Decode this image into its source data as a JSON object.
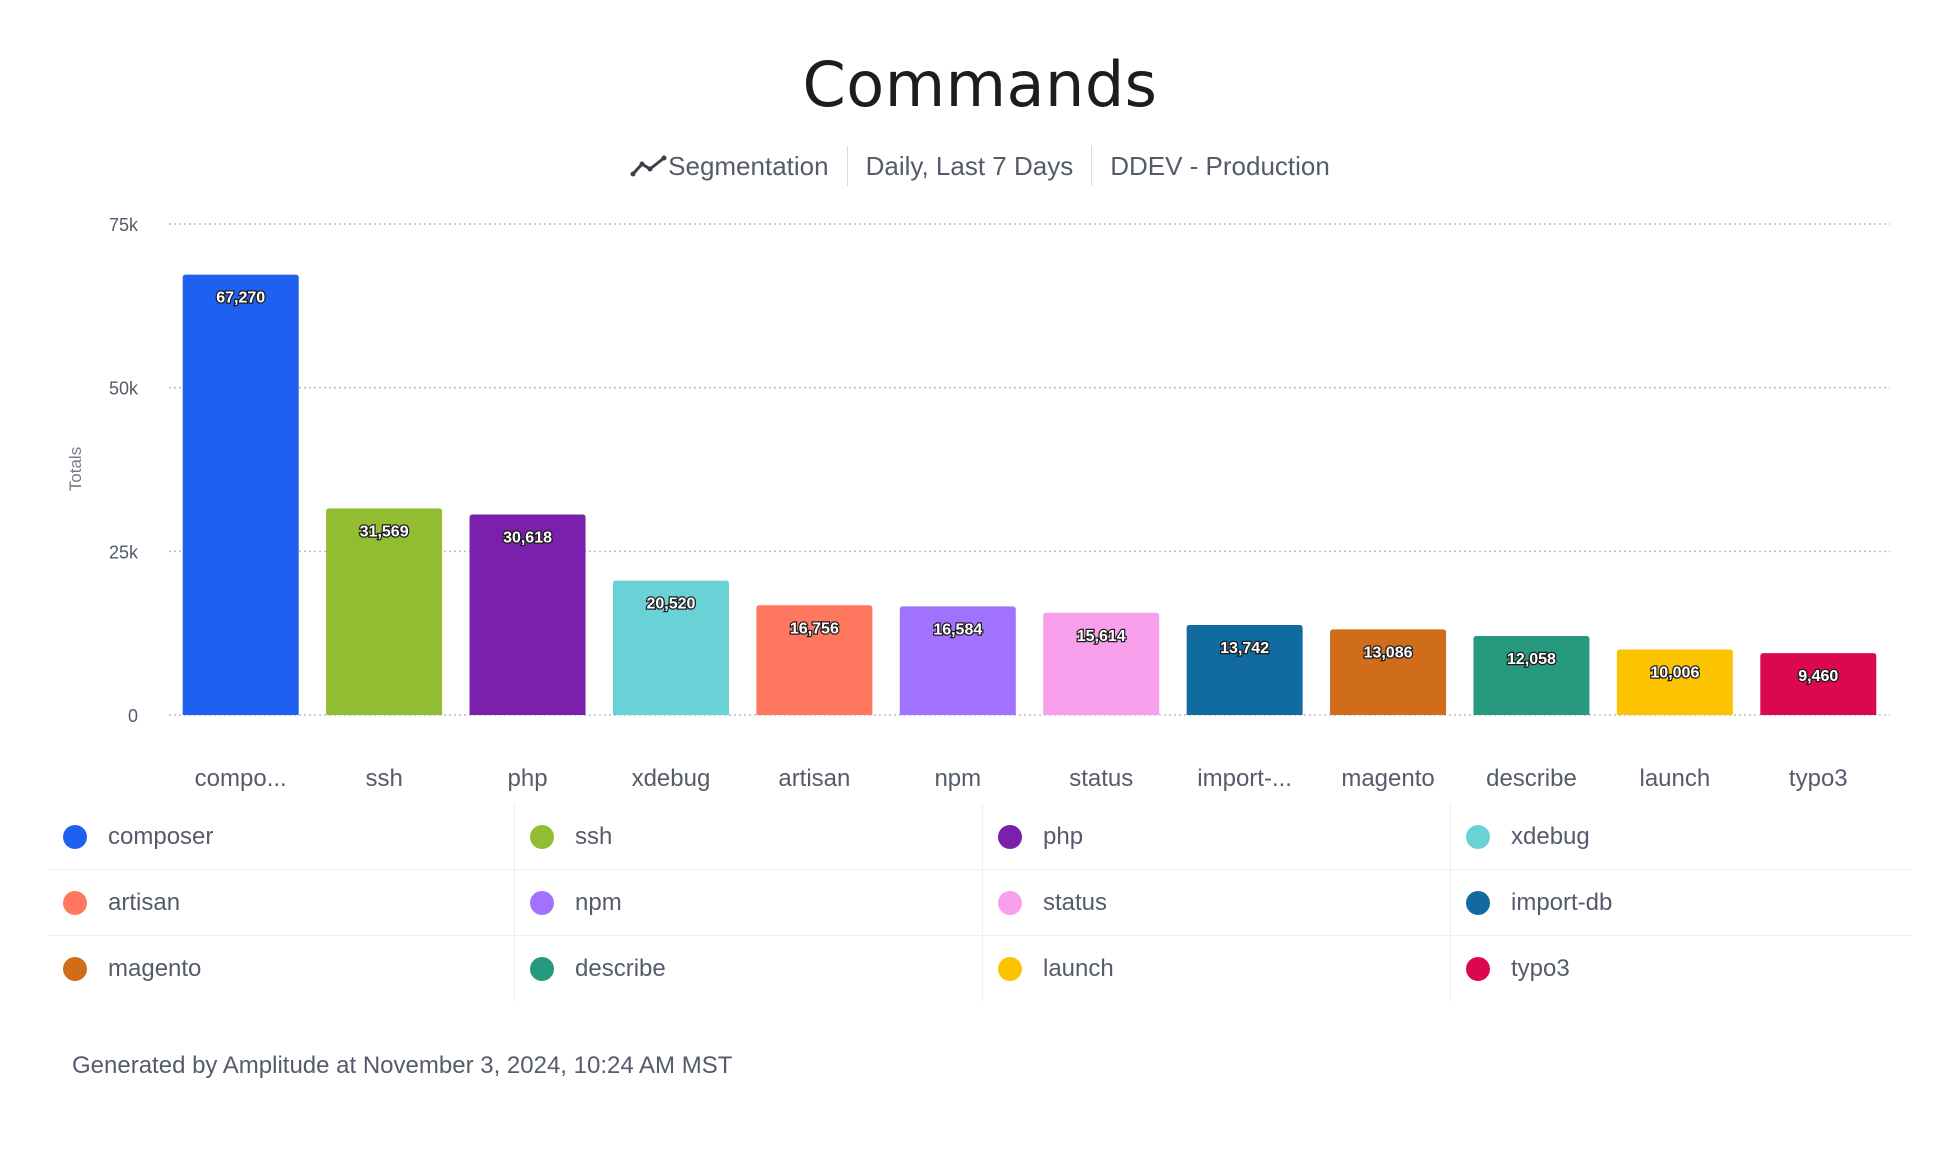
{
  "chart_data": {
    "type": "bar",
    "title": "Commands",
    "subtitle": {
      "mode": "Segmentation",
      "range": "Daily, Last 7 Days",
      "project": "DDEV - Production"
    },
    "ylabel": "Totals",
    "xlabel": "",
    "ylim": [
      0,
      75000
    ],
    "yticks": [
      {
        "value": 0,
        "label": "0"
      },
      {
        "value": 25000,
        "label": "25k"
      },
      {
        "value": 50000,
        "label": "50k"
      },
      {
        "value": 75000,
        "label": "75k"
      }
    ],
    "grid": true,
    "legend_placement": "bottom",
    "categories": [
      "composer",
      "ssh",
      "php",
      "xdebug",
      "artisan",
      "npm",
      "status",
      "import-db",
      "magento",
      "describe",
      "launch",
      "typo3"
    ],
    "tick_labels": [
      "compo...",
      "ssh",
      "php",
      "xdebug",
      "artisan",
      "npm",
      "status",
      "import-...",
      "magento",
      "describe",
      "launch",
      "typo3"
    ],
    "values": [
      67270,
      31569,
      30618,
      20520,
      16756,
      16584,
      15614,
      13742,
      13086,
      12058,
      10006,
      9460
    ],
    "data_labels": [
      "67,270",
      "31,569",
      "30,618",
      "20,520",
      "16,756",
      "16,584",
      "15,614",
      "13,742",
      "13,086",
      "12,058",
      "10,006",
      "9,460"
    ],
    "colors": [
      "#1e61f0",
      "#92bc31",
      "#7b1fad",
      "#68d2d6",
      "#ff775f",
      "#a172ff",
      "#f8a0ec",
      "#116aa0",
      "#d06d1a",
      "#26997f",
      "#fbc300",
      "#db084f"
    ]
  },
  "segmentation_icon": "line-chart-icon",
  "footer": "Generated by Amplitude at November 3, 2024, 10:24 AM MST"
}
